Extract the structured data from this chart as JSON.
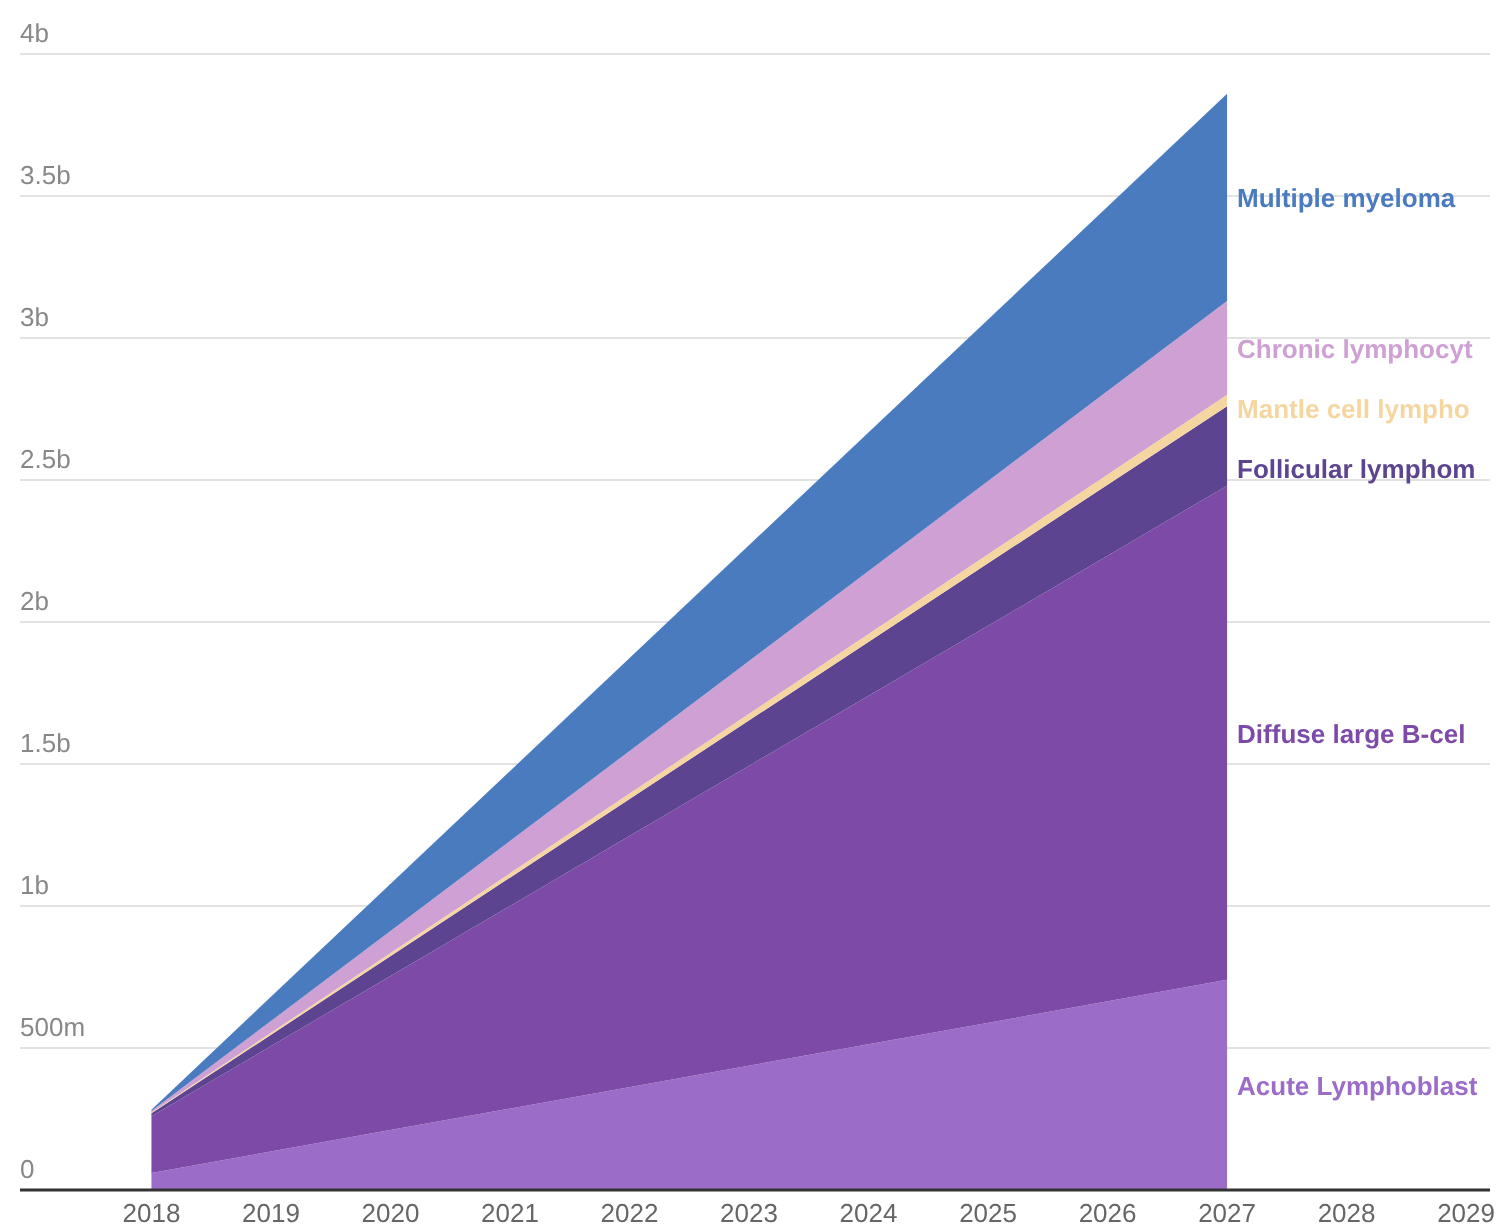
{
  "chart_data": {
    "type": "area",
    "stacked": true,
    "x": [
      2018,
      2027
    ],
    "xlim": [
      2016.9,
      2029.2
    ],
    "xticks": [
      2018,
      2019,
      2020,
      2021,
      2022,
      2023,
      2024,
      2025,
      2026,
      2027,
      2028,
      2029
    ],
    "ylim": [
      0,
      4000000000
    ],
    "yticks": [
      0,
      {
        "value": 500000000,
        "label": "500m"
      },
      {
        "value": 1000000000,
        "label": "1b"
      },
      {
        "value": 1500000000,
        "label": "1.5b"
      },
      {
        "value": 2000000000,
        "label": "2b"
      },
      {
        "value": 2500000000,
        "label": "2.5b"
      },
      {
        "value": 3000000000,
        "label": "3b"
      },
      {
        "value": 3500000000,
        "label": "3.5b"
      },
      {
        "value": 4000000000,
        "label": "4b"
      }
    ],
    "grid": "y",
    "series": [
      {
        "name": "Acute Lymphoblast",
        "color": "#9b6cc8",
        "values": [
          60000000,
          740000000
        ]
      },
      {
        "name": "Diffuse large B-cel",
        "color": "#7d4aa8",
        "values": [
          200000000,
          1740000000
        ]
      },
      {
        "name": "Follicular lymphom",
        "color": "#5c4490",
        "values": [
          10000000,
          280000000
        ]
      },
      {
        "name": "Mantle cell lympho",
        "color": "#f6d6a0",
        "values": [
          3000000,
          40000000
        ]
      },
      {
        "name": "Chronic lymphocyt",
        "color": "#cfa0d4",
        "values": [
          5000000,
          330000000
        ]
      },
      {
        "name": "Multiple myeloma",
        "color": "#4a7bbf",
        "values": [
          5000000,
          730000000
        ]
      }
    ]
  }
}
